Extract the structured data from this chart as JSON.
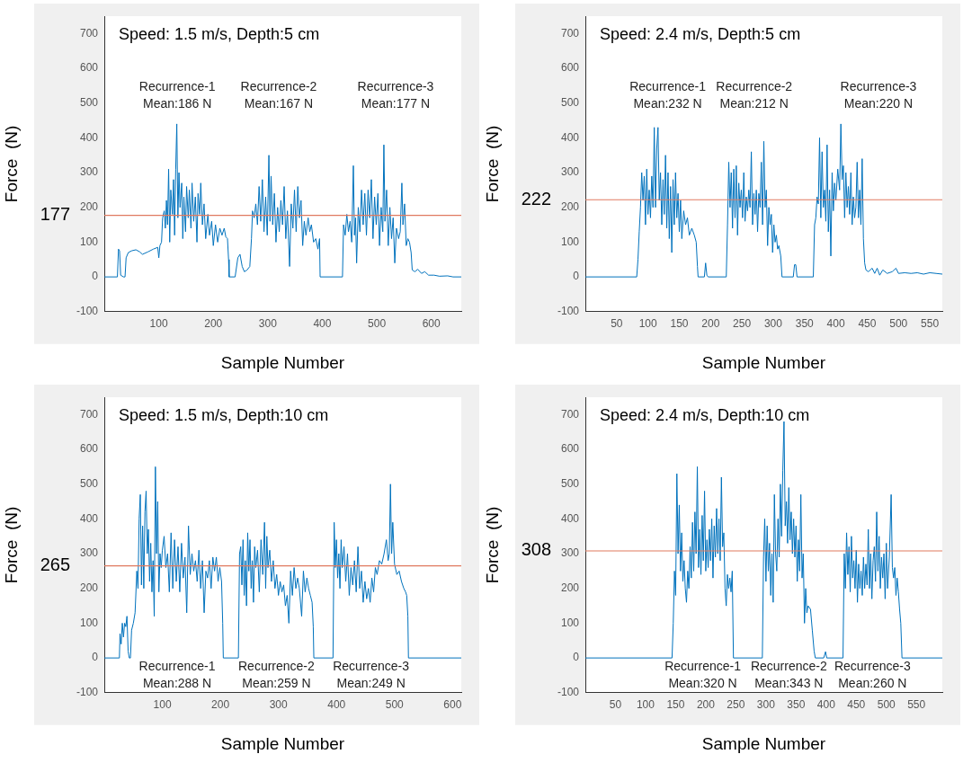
{
  "chart_data": [
    {
      "type": "line",
      "title": "Speed: 1.5 m/s, Depth:5 cm",
      "xlabel": "Sample Number",
      "ylabel": "Force  (N)",
      "xlim": [
        0,
        655
      ],
      "ylim": [
        -100,
        750
      ],
      "xticks": [
        100,
        200,
        300,
        400,
        500,
        600
      ],
      "yticks": [
        -100,
        0,
        100,
        200,
        300,
        400,
        500,
        600,
        700
      ],
      "grid": false,
      "legend": false,
      "marker": "none",
      "line_style": "solid",
      "x": [
        0,
        24,
        26,
        28,
        30,
        35,
        38,
        40,
        44,
        50,
        58,
        65,
        70,
        80,
        90,
        98,
        100,
        102,
        105,
        107,
        110,
        112,
        114,
        116,
        118,
        120,
        122,
        125,
        127,
        129,
        131,
        133,
        135,
        137,
        139,
        142,
        144,
        146,
        149,
        151,
        154,
        156,
        159,
        161,
        164,
        167,
        170,
        172,
        175,
        177,
        180,
        183,
        186,
        190,
        193,
        197,
        200,
        204,
        208,
        212,
        216,
        220,
        223,
        226,
        228,
        229,
        240,
        245,
        249,
        253,
        257,
        262,
        267,
        270,
        272,
        275,
        278,
        281,
        284,
        287,
        290,
        293,
        296,
        299,
        302,
        304,
        306,
        309,
        312,
        315,
        318,
        321,
        324,
        327,
        330,
        333,
        336,
        340,
        343,
        346,
        349,
        352,
        355,
        358,
        361,
        364,
        367,
        370,
        374,
        377,
        380,
        384,
        388,
        392,
        395,
        396,
        437,
        439,
        442,
        445,
        448,
        451,
        454,
        457,
        459,
        461,
        463,
        466,
        469,
        472,
        475,
        478,
        481,
        484,
        487,
        490,
        493,
        496,
        499,
        502,
        505,
        508,
        511,
        513,
        515,
        518,
        521,
        524,
        527,
        530,
        533,
        536,
        540,
        543,
        546,
        548,
        551,
        554,
        557,
        560,
        563,
        565,
        570,
        575,
        582,
        588,
        595,
        605,
        615,
        630,
        640,
        655
      ],
      "series": [
        {
          "color": "#0072bd",
          "values": [
            0,
            0,
            80,
            75,
            5,
            0,
            0,
            55,
            70,
            75,
            78,
            72,
            65,
            72,
            80,
            85,
            55,
            90,
            100,
            170,
            190,
            140,
            220,
            150,
            310,
            100,
            250,
            180,
            280,
            120,
            310,
            440,
            170,
            300,
            200,
            270,
            110,
            230,
            130,
            260,
            170,
            250,
            140,
            270,
            160,
            230,
            100,
            240,
            180,
            270,
            150,
            210,
            110,
            180,
            120,
            160,
            90,
            150,
            100,
            140,
            120,
            140,
            115,
            110,
            50,
            0,
            0,
            55,
            65,
            30,
            15,
            20,
            30,
            110,
            190,
            170,
            210,
            150,
            260,
            160,
            280,
            130,
            230,
            120,
            350,
            160,
            290,
            150,
            240,
            100,
            200,
            130,
            220,
            150,
            260,
            110,
            190,
            30,
            210,
            140,
            250,
            130,
            260,
            170,
            220,
            90,
            160,
            120,
            170,
            130,
            150,
            100,
            110,
            80,
            110,
            0,
            0,
            150,
            120,
            180,
            130,
            160,
            100,
            320,
            120,
            170,
            40,
            200,
            130,
            250,
            150,
            240,
            120,
            250,
            170,
            280,
            110,
            230,
            150,
            240,
            90,
            200,
            130,
            380,
            160,
            250,
            90,
            200,
            110,
            170,
            40,
            140,
            110,
            130,
            270,
            150,
            210,
            90,
            110,
            100,
            70,
            20,
            15,
            22,
            10,
            15,
            5,
            5,
            2,
            3,
            0,
            0
          ]
        }
      ],
      "ref_lines": [
        {
          "axis": "y",
          "value": 177,
          "label": "177",
          "color": "#e07a5f"
        }
      ],
      "annotations": [
        "Recurrence-1\nMean:186 N",
        "Recurrence-2\nMean:167 N",
        "Recurrence-3\nMean:177 N"
      ]
    },
    {
      "type": "line",
      "title": "Speed: 2.4 m/s, Depth:5 cm",
      "xlabel": "Sample Number",
      "ylabel": "Force  (N)",
      "xlim": [
        0,
        570
      ],
      "ylim": [
        -100,
        750
      ],
      "xticks": [
        50,
        100,
        150,
        200,
        250,
        300,
        350,
        400,
        450,
        500,
        550
      ],
      "yticks": [
        -100,
        0,
        100,
        200,
        300,
        400,
        500,
        600,
        700
      ],
      "grid": false,
      "legend": false,
      "marker": "none",
      "line_style": "solid",
      "x": [
        0,
        82,
        84,
        86,
        88,
        90,
        92,
        94,
        96,
        98,
        100,
        102,
        104,
        106,
        108,
        110,
        112,
        114,
        116,
        118,
        120,
        122,
        124,
        126,
        128,
        130,
        132,
        134,
        136,
        138,
        140,
        142,
        144,
        146,
        148,
        150,
        152,
        154,
        157,
        160,
        163,
        166,
        170,
        174,
        177,
        179,
        180,
        190,
        192,
        194,
        196,
        225,
        227,
        229,
        231,
        233,
        235,
        237,
        239,
        241,
        243,
        245,
        247,
        249,
        251,
        253,
        255,
        257,
        259,
        261,
        263,
        265,
        267,
        269,
        271,
        273,
        275,
        277,
        279,
        281,
        283,
        285,
        287,
        289,
        291,
        293,
        295,
        297,
        299,
        301,
        303,
        305,
        307,
        309,
        312,
        314,
        332,
        334,
        336,
        338,
        364,
        366,
        368,
        370,
        372,
        374,
        376,
        378,
        380,
        382,
        384,
        386,
        388,
        390,
        392,
        394,
        396,
        398,
        400,
        403,
        406,
        408,
        410,
        412,
        414,
        416,
        418,
        420,
        422,
        424,
        426,
        428,
        430,
        432,
        434,
        436,
        438,
        440,
        442,
        444,
        446,
        448,
        452,
        458,
        462,
        466,
        470,
        475,
        482,
        490,
        496,
        500,
        510,
        520,
        530,
        540,
        550,
        560,
        570
      ],
      "series": [
        {
          "color": "#0072bd",
          "values": [
            0,
            0,
            50,
            130,
            200,
            300,
            220,
            290,
            150,
            310,
            180,
            250,
            170,
            290,
            200,
            430,
            200,
            370,
            430,
            220,
            300,
            150,
            280,
            180,
            350,
            140,
            300,
            110,
            260,
            70,
            280,
            150,
            300,
            170,
            240,
            130,
            220,
            110,
            190,
            150,
            170,
            120,
            140,
            120,
            100,
            30,
            0,
            0,
            40,
            5,
            0,
            0,
            150,
            330,
            200,
            300,
            140,
            310,
            170,
            320,
            120,
            270,
            200,
            250,
            170,
            300,
            160,
            230,
            190,
            250,
            200,
            360,
            150,
            240,
            180,
            250,
            130,
            240,
            200,
            330,
            150,
            390,
            200,
            250,
            90,
            200,
            150,
            180,
            70,
            150,
            100,
            120,
            80,
            90,
            60,
            0,
            0,
            35,
            35,
            0,
            0,
            150,
            170,
            230,
            210,
            400,
            170,
            360,
            200,
            250,
            160,
            380,
            130,
            250,
            60,
            300,
            190,
            270,
            220,
            310,
            250,
            440,
            280,
            320,
            170,
            300,
            200,
            260,
            180,
            300,
            150,
            230,
            170,
            200,
            330,
            170,
            250,
            150,
            340,
            110,
            40,
            20,
            15,
            25,
            10,
            25,
            5,
            20,
            10,
            15,
            25,
            10,
            12,
            10,
            12,
            8,
            12,
            10,
            8
          ]
        }
      ],
      "ref_lines": [
        {
          "axis": "y",
          "value": 222,
          "label": "222",
          "color": "#e07a5f"
        }
      ],
      "annotations": [
        "Recurrence-1\nMean:232 N",
        "Recurrence-2\nMean:212 N",
        "Recurrence-3\nMean:220 N"
      ]
    },
    {
      "type": "line",
      "title": "Speed: 1.5 m/s, Depth:10 cm",
      "xlabel": "Sample Number",
      "ylabel": "Force  (N)",
      "xlim": [
        0,
        615
      ],
      "ylim": [
        -100,
        750
      ],
      "xticks": [
        100,
        200,
        300,
        400,
        500,
        600
      ],
      "yticks": [
        -100,
        0,
        100,
        200,
        300,
        400,
        500,
        600,
        700
      ],
      "grid": false,
      "legend": false,
      "marker": "none",
      "line_style": "solid",
      "x": [
        0,
        26,
        27,
        29,
        31,
        33,
        35,
        37,
        39,
        41,
        43,
        45,
        47,
        50,
        53,
        56,
        58,
        60,
        62,
        64,
        66,
        68,
        70,
        72,
        74,
        76,
        78,
        80,
        82,
        84,
        86,
        88,
        90,
        92,
        94,
        96,
        98,
        100,
        103,
        106,
        109,
        112,
        115,
        118,
        121,
        124,
        127,
        130,
        133,
        136,
        139,
        142,
        145,
        148,
        151,
        154,
        157,
        160,
        163,
        166,
        169,
        172,
        175,
        178,
        181,
        184,
        187,
        190,
        193,
        196,
        199,
        202,
        204,
        205,
        231,
        233,
        235,
        237,
        239,
        241,
        243,
        245,
        247,
        249,
        251,
        253,
        255,
        257,
        259,
        261,
        264,
        267,
        270,
        273,
        276,
        278,
        280,
        282,
        285,
        288,
        291,
        294,
        297,
        300,
        303,
        306,
        309,
        312,
        315,
        318,
        321,
        324,
        327,
        330,
        333,
        336,
        340,
        343,
        346,
        349,
        352,
        355,
        358,
        360,
        361,
        394,
        396,
        398,
        400,
        402,
        404,
        406,
        408,
        410,
        413,
        416,
        419,
        422,
        425,
        428,
        431,
        434,
        437,
        440,
        443,
        446,
        449,
        452,
        455,
        458,
        461,
        464,
        467,
        470,
        474,
        478,
        482,
        486,
        489,
        491,
        493,
        495,
        497,
        500,
        504,
        508,
        512,
        516,
        519,
        521,
        523,
        524,
        615
      ],
      "series": [
        {
          "color": "#0072bd",
          "values": [
            0,
            0,
            70,
            40,
            100,
            60,
            100,
            90,
            120,
            20,
            0,
            0,
            80,
            100,
            130,
            250,
            200,
            400,
            470,
            210,
            380,
            200,
            420,
            480,
            300,
            370,
            220,
            330,
            190,
            280,
            120,
            550,
            300,
            450,
            190,
            300,
            260,
            310,
            350,
            260,
            300,
            190,
            360,
            200,
            340,
            220,
            320,
            190,
            330,
            230,
            290,
            130,
            380,
            240,
            300,
            250,
            280,
            220,
            310,
            200,
            280,
            130,
            250,
            230,
            280,
            200,
            290,
            250,
            290,
            220,
            260,
            220,
            100,
            0,
            0,
            300,
            320,
            210,
            340,
            180,
            280,
            150,
            360,
            250,
            340,
            200,
            280,
            160,
            320,
            260,
            310,
            190,
            340,
            240,
            390,
            200,
            350,
            260,
            310,
            220,
            280,
            200,
            240,
            180,
            220,
            190,
            210,
            150,
            180,
            100,
            250,
            180,
            260,
            200,
            230,
            200,
            120,
            250,
            190,
            230,
            200,
            180,
            160,
            90,
            0,
            0,
            390,
            260,
            340,
            230,
            300,
            200,
            340,
            260,
            320,
            220,
            300,
            180,
            260,
            210,
            280,
            190,
            320,
            200,
            250,
            160,
            220,
            170,
            200,
            160,
            230,
            190,
            260,
            240,
            280,
            270,
            300,
            340,
            280,
            300,
            500,
            300,
            390,
            270,
            240,
            250,
            220,
            200,
            190,
            180,
            120,
            0,
            0
          ]
        }
      ],
      "ref_lines": [
        {
          "axis": "y",
          "value": 265,
          "label": "265",
          "color": "#e07a5f"
        }
      ],
      "annotations": [
        "Recurrence-1\nMean:288 N",
        "Recurrence-2\nMean:259 N",
        "Recurrence-3\nMean:249 N"
      ]
    },
    {
      "type": "line",
      "title": "Speed: 2.4 m/s, Depth:10 cm",
      "xlabel": "Sample Number",
      "ylabel": "Force  (N)",
      "xlim": [
        0,
        593
      ],
      "ylim": [
        -100,
        750
      ],
      "xticks": [
        50,
        100,
        150,
        200,
        250,
        300,
        350,
        400,
        450,
        500,
        550
      ],
      "yticks": [
        -100,
        0,
        100,
        200,
        300,
        400,
        500,
        600,
        700
      ],
      "grid": false,
      "legend": false,
      "marker": "none",
      "line_style": "solid",
      "x": [
        0,
        144,
        146,
        148,
        150,
        152,
        154,
        156,
        158,
        160,
        162,
        164,
        166,
        168,
        170,
        172,
        174,
        176,
        178,
        180,
        182,
        184,
        186,
        188,
        190,
        192,
        194,
        196,
        198,
        200,
        202,
        204,
        206,
        208,
        210,
        212,
        214,
        216,
        218,
        220,
        222,
        224,
        226,
        228,
        230,
        232,
        234,
        236,
        238,
        240,
        242,
        244,
        246,
        294,
        296,
        298,
        300,
        302,
        304,
        306,
        308,
        310,
        312,
        314,
        316,
        318,
        320,
        322,
        324,
        326,
        328,
        330,
        332,
        334,
        336,
        338,
        340,
        342,
        344,
        346,
        348,
        350,
        352,
        354,
        356,
        358,
        360,
        362,
        364,
        366,
        368,
        370,
        374,
        377,
        380,
        382,
        396,
        399,
        401,
        428,
        430,
        432,
        434,
        436,
        438,
        440,
        442,
        444,
        446,
        448,
        450,
        452,
        454,
        456,
        458,
        460,
        462,
        464,
        466,
        468,
        470,
        472,
        474,
        476,
        478,
        480,
        482,
        484,
        486,
        488,
        490,
        492,
        494,
        496,
        498,
        500,
        502,
        505,
        508,
        510,
        512,
        514,
        516,
        518,
        520,
        522,
        524,
        526,
        593
      ],
      "series": [
        {
          "color": "#0072bd",
          "values": [
            0,
            0,
            100,
            250,
            180,
            530,
            300,
            440,
            250,
            360,
            220,
            280,
            200,
            160,
            250,
            200,
            320,
            230,
            390,
            250,
            420,
            300,
            550,
            260,
            370,
            240,
            410,
            280,
            480,
            250,
            340,
            260,
            370,
            280,
            400,
            230,
            380,
            290,
            430,
            300,
            400,
            280,
            520,
            320,
            360,
            200,
            150,
            240,
            200,
            230,
            190,
            250,
            0,
            0,
            290,
            400,
            220,
            380,
            250,
            330,
            180,
            300,
            160,
            470,
            300,
            250,
            400,
            290,
            500,
            350,
            540,
            680,
            380,
            450,
            330,
            490,
            340,
            420,
            300,
            400,
            290,
            380,
            220,
            340,
            250,
            470,
            230,
            300,
            100,
            200,
            130,
            150,
            140,
            80,
            20,
            0,
            0,
            18,
            0,
            0,
            300,
            200,
            360,
            240,
            320,
            190,
            350,
            230,
            280,
            200,
            310,
            160,
            270,
            200,
            250,
            180,
            290,
            200,
            270,
            210,
            370,
            200,
            300,
            170,
            280,
            320,
            220,
            420,
            250,
            350,
            200,
            290,
            230,
            300,
            170,
            330,
            200,
            290,
            470,
            260,
            230,
            260,
            180,
            230,
            190,
            140,
            100,
            0,
            0
          ]
        }
      ],
      "ref_lines": [
        {
          "axis": "y",
          "value": 308,
          "label": "308",
          "color": "#e07a5f"
        }
      ],
      "annotations": [
        "Recurrence-1\nMean:320 N",
        "Recurrence-2\nMean:343 N",
        "Recurrence-3\nMean:260 N"
      ]
    }
  ]
}
